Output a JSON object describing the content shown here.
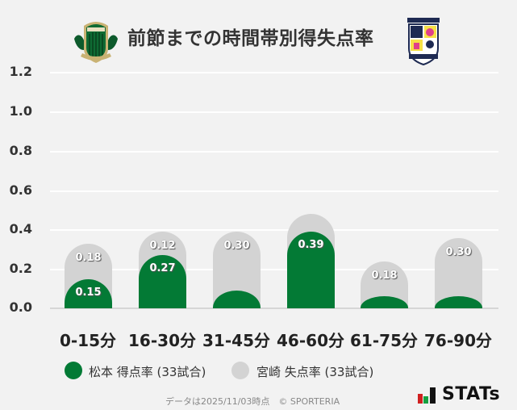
{
  "header": {
    "title": "前節までの時間帯別得失点率",
    "home_logo": "matsumoto-yamaga-crest-icon",
    "away_logo": "tegevajaro-miyazaki-crest-icon"
  },
  "colors": {
    "home_green": "#037a35",
    "away_gray": "#d3d3d3",
    "background": "#f2f2f2",
    "gridline": "#ffffff"
  },
  "axis": {
    "y_ticks": [
      "1.2",
      "1.0",
      "0.8",
      "0.6",
      "0.4",
      "0.2",
      "0.0"
    ]
  },
  "bars": [
    {
      "category": "0-15分",
      "home_label": "0.15",
      "away_label": "0.18"
    },
    {
      "category": "16-30分",
      "home_label": "0.27",
      "away_label": "0.12"
    },
    {
      "category": "31-45分",
      "home_label": "",
      "away_label": "0.30"
    },
    {
      "category": "46-60分",
      "home_label": "0.39",
      "away_label": ""
    },
    {
      "category": "61-75分",
      "home_label": "",
      "away_label": "0.18"
    },
    {
      "category": "76-90分",
      "home_label": "",
      "away_label": "0.30"
    }
  ],
  "legend": {
    "home": "松本 得点率 (33試合)",
    "away": "宮崎 失点率 (33試合)"
  },
  "footer": {
    "note": "データは2025/11/03時点　© SPORTERIA",
    "brand": "STATs"
  },
  "chart_data": {
    "type": "bar",
    "stacked": true,
    "title": "前節までの時間帯別得失点率",
    "categories": [
      "0-15分",
      "16-30分",
      "31-45分",
      "46-60分",
      "61-75分",
      "76-90分"
    ],
    "series": [
      {
        "name": "松本 得点率 (33試合)",
        "color": "#037a35",
        "values": [
          0.15,
          0.27,
          0.09,
          0.39,
          0.06,
          0.06
        ]
      },
      {
        "name": "宮崎 失点率 (33試合)",
        "color": "#d3d3d3",
        "values": [
          0.18,
          0.12,
          0.3,
          0.09,
          0.18,
          0.3
        ]
      }
    ],
    "data_labels_shown": {
      "松本 得点率 (33試合)": [
        "0.15",
        "0.27",
        null,
        "0.39",
        null,
        null
      ],
      "宮崎 失点率 (33試合)": [
        "0.18",
        "0.12",
        "0.30",
        null,
        "0.18",
        "0.30"
      ]
    },
    "xlabel": "",
    "ylabel": "",
    "ylim": [
      0,
      1.2
    ],
    "y_ticks": [
      0.0,
      0.2,
      0.4,
      0.6,
      0.8,
      1.0,
      1.2
    ],
    "grid": true,
    "legend_position": "bottom"
  }
}
